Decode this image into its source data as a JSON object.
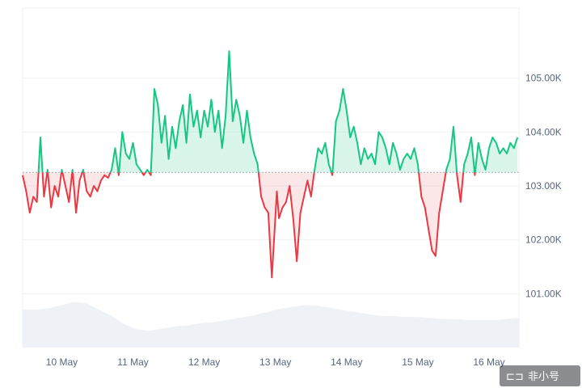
{
  "chart_data": {
    "type": "area",
    "baseline": 103250,
    "colors": {
      "up": "#16c784",
      "down": "#ea3943",
      "volume": "#eef1f5",
      "grid": "#eff2f5"
    },
    "y_ticks": [
      {
        "value": 101000,
        "label": "101.00K"
      },
      {
        "value": 102000,
        "label": "102.00K"
      },
      {
        "value": 103000,
        "label": "103.00K"
      },
      {
        "value": 104000,
        "label": "104.00K"
      },
      {
        "value": 105000,
        "label": "105.00K"
      }
    ],
    "x_ticks": [
      {
        "day": 0,
        "label": "10 May"
      },
      {
        "day": 1,
        "label": "11 May"
      },
      {
        "day": 2,
        "label": "12 May"
      },
      {
        "day": 3,
        "label": "13 May"
      },
      {
        "day": 4,
        "label": "14 May"
      },
      {
        "day": 5,
        "label": "15 May"
      },
      {
        "day": 6,
        "label": "16 May"
      }
    ],
    "ylim": [
      100000,
      106300
    ],
    "xlim": [
      -0.55,
      6.42
    ],
    "grid": true,
    "series": [
      {
        "x": [
          -0.55,
          -0.5,
          -0.45,
          -0.4,
          -0.35,
          -0.3,
          -0.25,
          -0.2,
          -0.15,
          -0.1,
          -0.05,
          0.0,
          0.05,
          0.1,
          0.15,
          0.2,
          0.25,
          0.3,
          0.35,
          0.4,
          0.45,
          0.5,
          0.55,
          0.6,
          0.65,
          0.7,
          0.75,
          0.8,
          0.85,
          0.9,
          0.95,
          1.0,
          1.05,
          1.1,
          1.15,
          1.2,
          1.25,
          1.3,
          1.35,
          1.4,
          1.45,
          1.5,
          1.55,
          1.6,
          1.65,
          1.7,
          1.75,
          1.8,
          1.85,
          1.9,
          1.95,
          2.0,
          2.05,
          2.1,
          2.15,
          2.2,
          2.25,
          2.3,
          2.35,
          2.4,
          2.45,
          2.5,
          2.55,
          2.6,
          2.65,
          2.7,
          2.75,
          2.8,
          2.85,
          2.9,
          2.95,
          2.99,
          3.02,
          3.05,
          3.1,
          3.15,
          3.2,
          3.25,
          3.3,
          3.35,
          3.4,
          3.45,
          3.5,
          3.55,
          3.6,
          3.65,
          3.7,
          3.75,
          3.8,
          3.85,
          3.9,
          3.95,
          4.0,
          4.05,
          4.1,
          4.15,
          4.2,
          4.25,
          4.3,
          4.35,
          4.4,
          4.45,
          4.5,
          4.55,
          4.6,
          4.65,
          4.7,
          4.75,
          4.8,
          4.85,
          4.9,
          4.95,
          5.0,
          5.05,
          5.1,
          5.15,
          5.2,
          5.25,
          5.3,
          5.35,
          5.4,
          5.45,
          5.5,
          5.55,
          5.6,
          5.65,
          5.7,
          5.75,
          5.8,
          5.85,
          5.9,
          5.95,
          6.0,
          6.05,
          6.1,
          6.15,
          6.2,
          6.25,
          6.3,
          6.35,
          6.4
        ],
        "y": [
          103200,
          102900,
          102500,
          102800,
          102700,
          103900,
          102800,
          103300,
          102600,
          103000,
          102800,
          103300,
          103000,
          102700,
          103300,
          102500,
          103100,
          103300,
          102900,
          102800,
          103000,
          102900,
          103100,
          103200,
          103150,
          103300,
          103700,
          103200,
          104000,
          103600,
          103500,
          103800,
          103400,
          103300,
          103200,
          103300,
          103200,
          104800,
          104500,
          103800,
          104300,
          103500,
          104100,
          103700,
          104200,
          104500,
          103800,
          104700,
          104100,
          104400,
          103900,
          104400,
          104100,
          104600,
          104000,
          104400,
          103700,
          104300,
          105500,
          104200,
          104600,
          104300,
          103800,
          104400,
          103900,
          103600,
          103400,
          102800,
          102600,
          102500,
          101300,
          102200,
          102900,
          102400,
          102600,
          102700,
          103000,
          102400,
          101600,
          102500,
          102800,
          103100,
          102800,
          103300,
          103700,
          103600,
          103800,
          103400,
          103200,
          104200,
          104400,
          104800,
          104400,
          103900,
          104100,
          103800,
          103400,
          103700,
          103500,
          103600,
          103400,
          104000,
          103900,
          103700,
          103400,
          103800,
          103600,
          103300,
          103500,
          103600,
          103500,
          103700,
          103400,
          102800,
          102600,
          102200,
          101800,
          101700,
          102500,
          102900,
          103300,
          103500,
          104100,
          103200,
          102700,
          103400,
          103600,
          103900,
          103200,
          103800,
          103500,
          103300,
          103700,
          103900,
          103800,
          103600,
          103700,
          103600,
          103800,
          103700,
          103900
        ]
      }
    ],
    "volume_band": [
      0.36,
      0.36,
      0.37,
      0.4,
      0.43,
      0.42,
      0.36,
      0.3,
      0.22,
      0.17,
      0.16,
      0.18,
      0.2,
      0.21,
      0.23,
      0.24,
      0.26,
      0.28,
      0.3,
      0.33,
      0.36,
      0.38,
      0.4,
      0.4,
      0.38,
      0.36,
      0.34,
      0.32,
      0.3,
      0.3,
      0.29,
      0.29,
      0.28,
      0.27,
      0.27,
      0.26,
      0.26,
      0.26,
      0.27,
      0.28
    ],
    "volume_max_fraction": 0.14
  },
  "watermark": {
    "text": "非小号"
  }
}
